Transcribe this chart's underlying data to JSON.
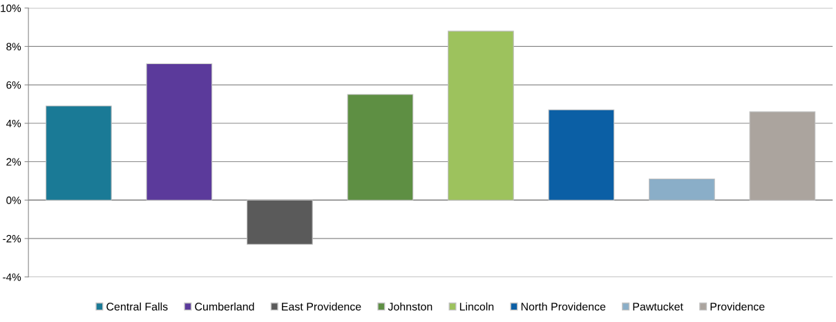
{
  "chart_data": {
    "type": "bar",
    "stacked": true,
    "categories": [
      null,
      null,
      null,
      null,
      null,
      null,
      null,
      null
    ],
    "series": [
      {
        "name": "Central Falls",
        "color": "#1a7a96",
        "values": [
          4.9,
          null,
          null,
          null,
          null,
          null,
          null,
          null
        ]
      },
      {
        "name": "Cumberland",
        "color": "#5b3a9b",
        "values": [
          null,
          7.1,
          null,
          null,
          null,
          null,
          null,
          null
        ]
      },
      {
        "name": "East Providence",
        "color": "#5a5a5a",
        "values": [
          null,
          null,
          -2.3,
          null,
          null,
          null,
          null,
          null
        ]
      },
      {
        "name": "Johnston",
        "color": "#5e8f43",
        "values": [
          null,
          null,
          null,
          5.5,
          null,
          null,
          null,
          null
        ]
      },
      {
        "name": "Lincoln",
        "color": "#9dc25d",
        "values": [
          null,
          null,
          null,
          null,
          8.8,
          null,
          null,
          null
        ]
      },
      {
        "name": "North Providence",
        "color": "#0b5fa5",
        "values": [
          null,
          null,
          null,
          null,
          null,
          4.7,
          null,
          null
        ]
      },
      {
        "name": "Pawtucket",
        "color": "#8aaec8",
        "values": [
          null,
          null,
          null,
          null,
          null,
          null,
          1.1,
          null
        ]
      },
      {
        "name": "Providence",
        "color": "#aba49e",
        "values": [
          null,
          null,
          null,
          null,
          null,
          null,
          null,
          4.6
        ]
      }
    ],
    "ylim": [
      -4,
      10
    ],
    "yticks": [
      {
        "value": -4,
        "label": "-4%"
      },
      {
        "value": -2,
        "label": "-2%"
      },
      {
        "value": 0,
        "label": "0%"
      },
      {
        "value": 2,
        "label": "2%"
      },
      {
        "value": 4,
        "label": "4%"
      },
      {
        "value": 6,
        "label": "6%"
      },
      {
        "value": 8,
        "label": "8%"
      },
      {
        "value": 10,
        "label": "10%"
      }
    ],
    "grid": "y",
    "legend": "bottom"
  }
}
